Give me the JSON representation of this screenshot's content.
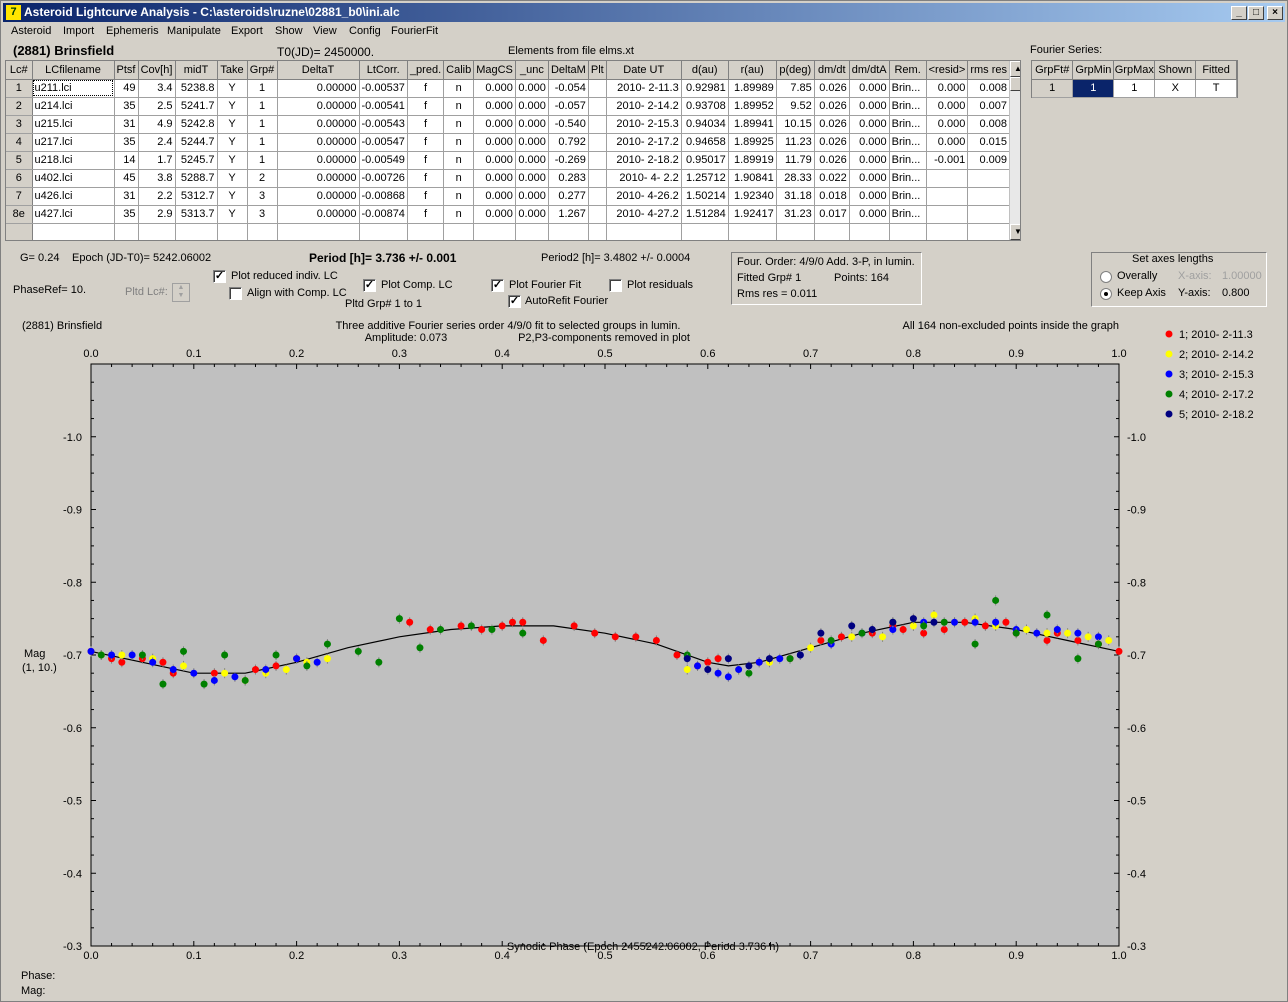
{
  "window": {
    "title": "Asteroid Lightcurve Analysis - C:\\asteroids\\ruzne\\02881_b0\\ini.alc",
    "icon_glyph": "7",
    "minimize": "_",
    "maximize": "□",
    "close": "×"
  },
  "menu": [
    "Asteroid",
    "Import",
    "Ephemeris",
    "Manipulate",
    "Export",
    "Show",
    "View",
    "Config",
    "FourierFit"
  ],
  "header": {
    "asteroid": "(2881) Brinsfield",
    "t0": "T0(JD)= 2450000.",
    "elements": "Elements from file elms.xt"
  },
  "grid": {
    "columns": [
      "Lc#",
      "LCfilename",
      "Ptsf",
      "Cov[h]",
      "midT",
      "Take",
      "Grp#",
      "DeltaT",
      "LtCorr.",
      "_pred.",
      "Calib",
      "MagCS",
      "_unc",
      "DeltaM",
      "Plt",
      "Date UT",
      "d(au)",
      "r(au)",
      "p(deg)",
      "dm/dt",
      "dm/dtA",
      "Rem.",
      "<resid>",
      "rms res"
    ],
    "rows": [
      [
        "1",
        "u211.lci",
        "49",
        "3.4",
        "5238.8",
        "Y",
        "1",
        "0.00000",
        "-0.00537",
        "f",
        "n",
        "0.000",
        "0.000",
        "-0.054",
        "",
        "2010- 2-11.3",
        "0.92981",
        "1.89989",
        "7.85",
        "0.026",
        "0.000",
        "Brin...",
        "0.000",
        "0.008"
      ],
      [
        "2",
        "u214.lci",
        "35",
        "2.5",
        "5241.7",
        "Y",
        "1",
        "0.00000",
        "-0.00541",
        "f",
        "n",
        "0.000",
        "0.000",
        "-0.057",
        "",
        "2010- 2-14.2",
        "0.93708",
        "1.89952",
        "9.52",
        "0.026",
        "0.000",
        "Brin...",
        "0.000",
        "0.007"
      ],
      [
        "3",
        "u215.lci",
        "31",
        "4.9",
        "5242.8",
        "Y",
        "1",
        "0.00000",
        "-0.00543",
        "f",
        "n",
        "0.000",
        "0.000",
        "-0.540",
        "",
        "2010- 2-15.3",
        "0.94034",
        "1.89941",
        "10.15",
        "0.026",
        "0.000",
        "Brin...",
        "0.000",
        "0.008"
      ],
      [
        "4",
        "u217.lci",
        "35",
        "2.4",
        "5244.7",
        "Y",
        "1",
        "0.00000",
        "-0.00547",
        "f",
        "n",
        "0.000",
        "0.000",
        "0.792",
        "",
        "2010- 2-17.2",
        "0.94658",
        "1.89925",
        "11.23",
        "0.026",
        "0.000",
        "Brin...",
        "0.000",
        "0.015"
      ],
      [
        "5",
        "u218.lci",
        "14",
        "1.7",
        "5245.7",
        "Y",
        "1",
        "0.00000",
        "-0.00549",
        "f",
        "n",
        "0.000",
        "0.000",
        "-0.269",
        "",
        "2010- 2-18.2",
        "0.95017",
        "1.89919",
        "11.79",
        "0.026",
        "0.000",
        "Brin...",
        "-0.001",
        "0.009"
      ],
      [
        "6",
        "u402.lci",
        "45",
        "3.8",
        "5288.7",
        "Y",
        "2",
        "0.00000",
        "-0.00726",
        "f",
        "n",
        "0.000",
        "0.000",
        "0.283",
        "",
        "2010- 4- 2.2",
        "1.25712",
        "1.90841",
        "28.33",
        "0.022",
        "0.000",
        "Brin...",
        "",
        ""
      ],
      [
        "7",
        "u426.lci",
        "31",
        "2.2",
        "5312.7",
        "Y",
        "3",
        "0.00000",
        "-0.00868",
        "f",
        "n",
        "0.000",
        "0.000",
        "0.277",
        "",
        "2010- 4-26.2",
        "1.50214",
        "1.92340",
        "31.18",
        "0.018",
        "0.000",
        "Brin...",
        "",
        ""
      ],
      [
        "8e",
        "u427.lci",
        "35",
        "2.9",
        "5313.7",
        "Y",
        "3",
        "0.00000",
        "-0.00874",
        "f",
        "n",
        "0.000",
        "0.000",
        "1.267",
        "",
        "2010- 4-27.2",
        "1.51284",
        "1.92417",
        "31.23",
        "0.017",
        "0.000",
        "Brin...",
        "",
        ""
      ]
    ]
  },
  "fourier": {
    "label": "Fourier Series:",
    "columns": [
      "GrpFt#",
      "GrpMin",
      "GrpMax",
      "Shown",
      "Fitted"
    ],
    "row": [
      "1",
      "1",
      "1",
      "X",
      "T"
    ]
  },
  "info": {
    "g": "G= 0.24",
    "epoch": "Epoch (JD-T0)= 5242.06002",
    "period": "Period [h]= 3.736 +/- 0.001",
    "period2": "Period2 [h]= 3.4802 +/- 0.0004",
    "phaseref": "PhaseRef= 10.",
    "pltd_lc": "Pltd Lc#:",
    "pltd_grp": "Pltd Grp#  1   to   1",
    "four_order": "Four. Order:  4/9/0  Add. 3-P, in lumin.",
    "fitted_grp": "Fitted Grp# 1",
    "points": "Points: 164",
    "rms": "Rms res     = 0.011"
  },
  "checkboxes": [
    {
      "label": "Plot reduced indiv. LC",
      "checked": true
    },
    {
      "label": "Align with Comp. LC",
      "checked": false
    },
    {
      "label": "Plot Comp. LC",
      "checked": true
    },
    {
      "label": "Plot Fourier Fit",
      "checked": true
    },
    {
      "label": "Plot residuals",
      "checked": false
    },
    {
      "label": "AutoRefit Fourier",
      "checked": true
    }
  ],
  "axes": {
    "title": "Set axes lengths",
    "overally": "Overally",
    "keep": "Keep Axis",
    "xaxis_label": "X-axis:",
    "xaxis_value": "1.00000",
    "yaxis_label": "Y-axis:",
    "yaxis_value": "0.800"
  },
  "chart_data": {
    "type": "scatter",
    "title_left": "(2881) Brinsfield",
    "title_center": "Three additive Fourier series order 4/9/0 fit to selected groups in lumin.",
    "amplitude": "Amplitude: 0.073",
    "p_note": "P2,P3-components removed in plot",
    "title_right": "All 164 non-excluded points inside the graph",
    "xlabel": "Synodic Phase (Epoch 2455242.06002, Period 3.736 h)",
    "ylabel": "Mag",
    "ylabel2": "(1, 10.)",
    "xlim": [
      0,
      1
    ],
    "ylim": [
      -0.3,
      -1.1
    ],
    "xticks": [
      "0.0",
      "0.1",
      "0.2",
      "0.3",
      "0.4",
      "0.5",
      "0.6",
      "0.7",
      "0.8",
      "0.9",
      "1.0"
    ],
    "yticks": [
      "-1.0",
      "-0.9",
      "-0.8",
      "-0.7",
      "-0.6",
      "-0.5",
      "-0.4",
      "-0.3"
    ],
    "series": [
      {
        "name": "1; 2010- 2-11.3",
        "color": "#ff0000",
        "x": [
          0.0,
          0.02,
          0.03,
          0.05,
          0.07,
          0.08,
          0.12,
          0.16,
          0.18,
          0.2,
          0.31,
          0.33,
          0.36,
          0.38,
          0.4,
          0.41,
          0.42,
          0.44,
          0.47,
          0.49,
          0.51,
          0.53,
          0.55,
          0.57,
          0.59,
          0.6,
          0.61,
          0.65,
          0.68,
          0.71,
          0.73,
          0.76,
          0.78,
          0.79,
          0.81,
          0.83,
          0.85,
          0.87,
          0.89,
          0.9,
          0.93,
          0.94,
          0.96,
          0.98,
          1.0
        ],
        "y": [
          -0.705,
          -0.695,
          -0.69,
          -0.695,
          -0.69,
          -0.675,
          -0.675,
          -0.68,
          -0.685,
          -0.695,
          -0.745,
          -0.735,
          -0.74,
          -0.735,
          -0.74,
          -0.745,
          -0.745,
          -0.72,
          -0.74,
          -0.73,
          -0.725,
          -0.725,
          -0.72,
          -0.7,
          -0.685,
          -0.69,
          -0.695,
          -0.69,
          -0.695,
          -0.72,
          -0.725,
          -0.73,
          -0.74,
          -0.735,
          -0.73,
          -0.735,
          -0.745,
          -0.74,
          -0.745,
          -0.73,
          -0.72,
          -0.73,
          -0.72,
          -0.715,
          -0.705
        ]
      },
      {
        "name": "2; 2010- 2-14.2",
        "color": "#ffff00",
        "x": [
          0.01,
          0.03,
          0.06,
          0.09,
          0.13,
          0.15,
          0.17,
          0.19,
          0.21,
          0.23,
          0.58,
          0.63,
          0.66,
          0.7,
          0.74,
          0.77,
          0.8,
          0.82,
          0.84,
          0.86,
          0.88,
          0.91,
          0.93,
          0.95,
          0.97,
          0.99
        ],
        "y": [
          -0.7,
          -0.7,
          -0.695,
          -0.685,
          -0.675,
          -0.665,
          -0.675,
          -0.68,
          -0.69,
          -0.695,
          -0.68,
          -0.68,
          -0.69,
          -0.71,
          -0.725,
          -0.725,
          -0.74,
          -0.755,
          -0.745,
          -0.75,
          -0.74,
          -0.735,
          -0.73,
          -0.73,
          -0.725,
          -0.72
        ]
      },
      {
        "name": "3; 2010- 2-15.3",
        "color": "#0000ff",
        "x": [
          0.0,
          0.02,
          0.04,
          0.06,
          0.08,
          0.1,
          0.12,
          0.14,
          0.17,
          0.2,
          0.22,
          0.59,
          0.61,
          0.62,
          0.63,
          0.65,
          0.67,
          0.69,
          0.72,
          0.75,
          0.78,
          0.81,
          0.84,
          0.86,
          0.88,
          0.9,
          0.92,
          0.94,
          0.96,
          0.98
        ],
        "y": [
          -0.705,
          -0.7,
          -0.7,
          -0.69,
          -0.68,
          -0.675,
          -0.665,
          -0.67,
          -0.68,
          -0.695,
          -0.69,
          -0.685,
          -0.675,
          -0.67,
          -0.68,
          -0.69,
          -0.695,
          -0.7,
          -0.715,
          -0.73,
          -0.735,
          -0.745,
          -0.745,
          -0.745,
          -0.745,
          -0.735,
          -0.73,
          -0.735,
          -0.73,
          -0.725
        ]
      },
      {
        "name": "4; 2010- 2-17.2",
        "color": "#008000",
        "x": [
          0.01,
          0.05,
          0.07,
          0.09,
          0.11,
          0.13,
          0.15,
          0.18,
          0.21,
          0.23,
          0.26,
          0.28,
          0.3,
          0.32,
          0.34,
          0.37,
          0.39,
          0.42,
          0.58,
          0.64,
          0.68,
          0.72,
          0.75,
          0.78,
          0.81,
          0.83,
          0.86,
          0.88,
          0.9,
          0.93,
          0.96,
          0.98
        ],
        "y": [
          -0.7,
          -0.7,
          -0.66,
          -0.705,
          -0.66,
          -0.7,
          -0.665,
          -0.7,
          -0.685,
          -0.715,
          -0.705,
          -0.69,
          -0.75,
          -0.71,
          -0.735,
          -0.74,
          -0.735,
          -0.73,
          -0.7,
          -0.675,
          -0.695,
          -0.72,
          -0.73,
          -0.745,
          -0.74,
          -0.745,
          -0.715,
          -0.775,
          -0.73,
          -0.755,
          -0.695,
          -0.715
        ]
      },
      {
        "name": "5; 2010- 2-18.2",
        "color": "#000080",
        "x": [
          0.58,
          0.6,
          0.62,
          0.64,
          0.66,
          0.69,
          0.71,
          0.74,
          0.76,
          0.78,
          0.8,
          0.82
        ],
        "y": [
          -0.695,
          -0.68,
          -0.695,
          -0.685,
          -0.695,
          -0.7,
          -0.73,
          -0.74,
          -0.735,
          -0.745,
          -0.75,
          -0.745
        ]
      }
    ],
    "fit": {
      "x": [
        0.0,
        0.05,
        0.1,
        0.15,
        0.2,
        0.25,
        0.3,
        0.35,
        0.4,
        0.45,
        0.5,
        0.55,
        0.6,
        0.62,
        0.65,
        0.7,
        0.75,
        0.8,
        0.85,
        0.9,
        0.95,
        1.0
      ],
      "y": [
        -0.705,
        -0.69,
        -0.675,
        -0.675,
        -0.69,
        -0.71,
        -0.725,
        -0.735,
        -0.74,
        -0.74,
        -0.73,
        -0.715,
        -0.69,
        -0.685,
        -0.69,
        -0.71,
        -0.73,
        -0.745,
        -0.745,
        -0.735,
        -0.72,
        -0.705
      ]
    }
  },
  "status": {
    "phase": "Phase:",
    "mag": "Mag:"
  }
}
